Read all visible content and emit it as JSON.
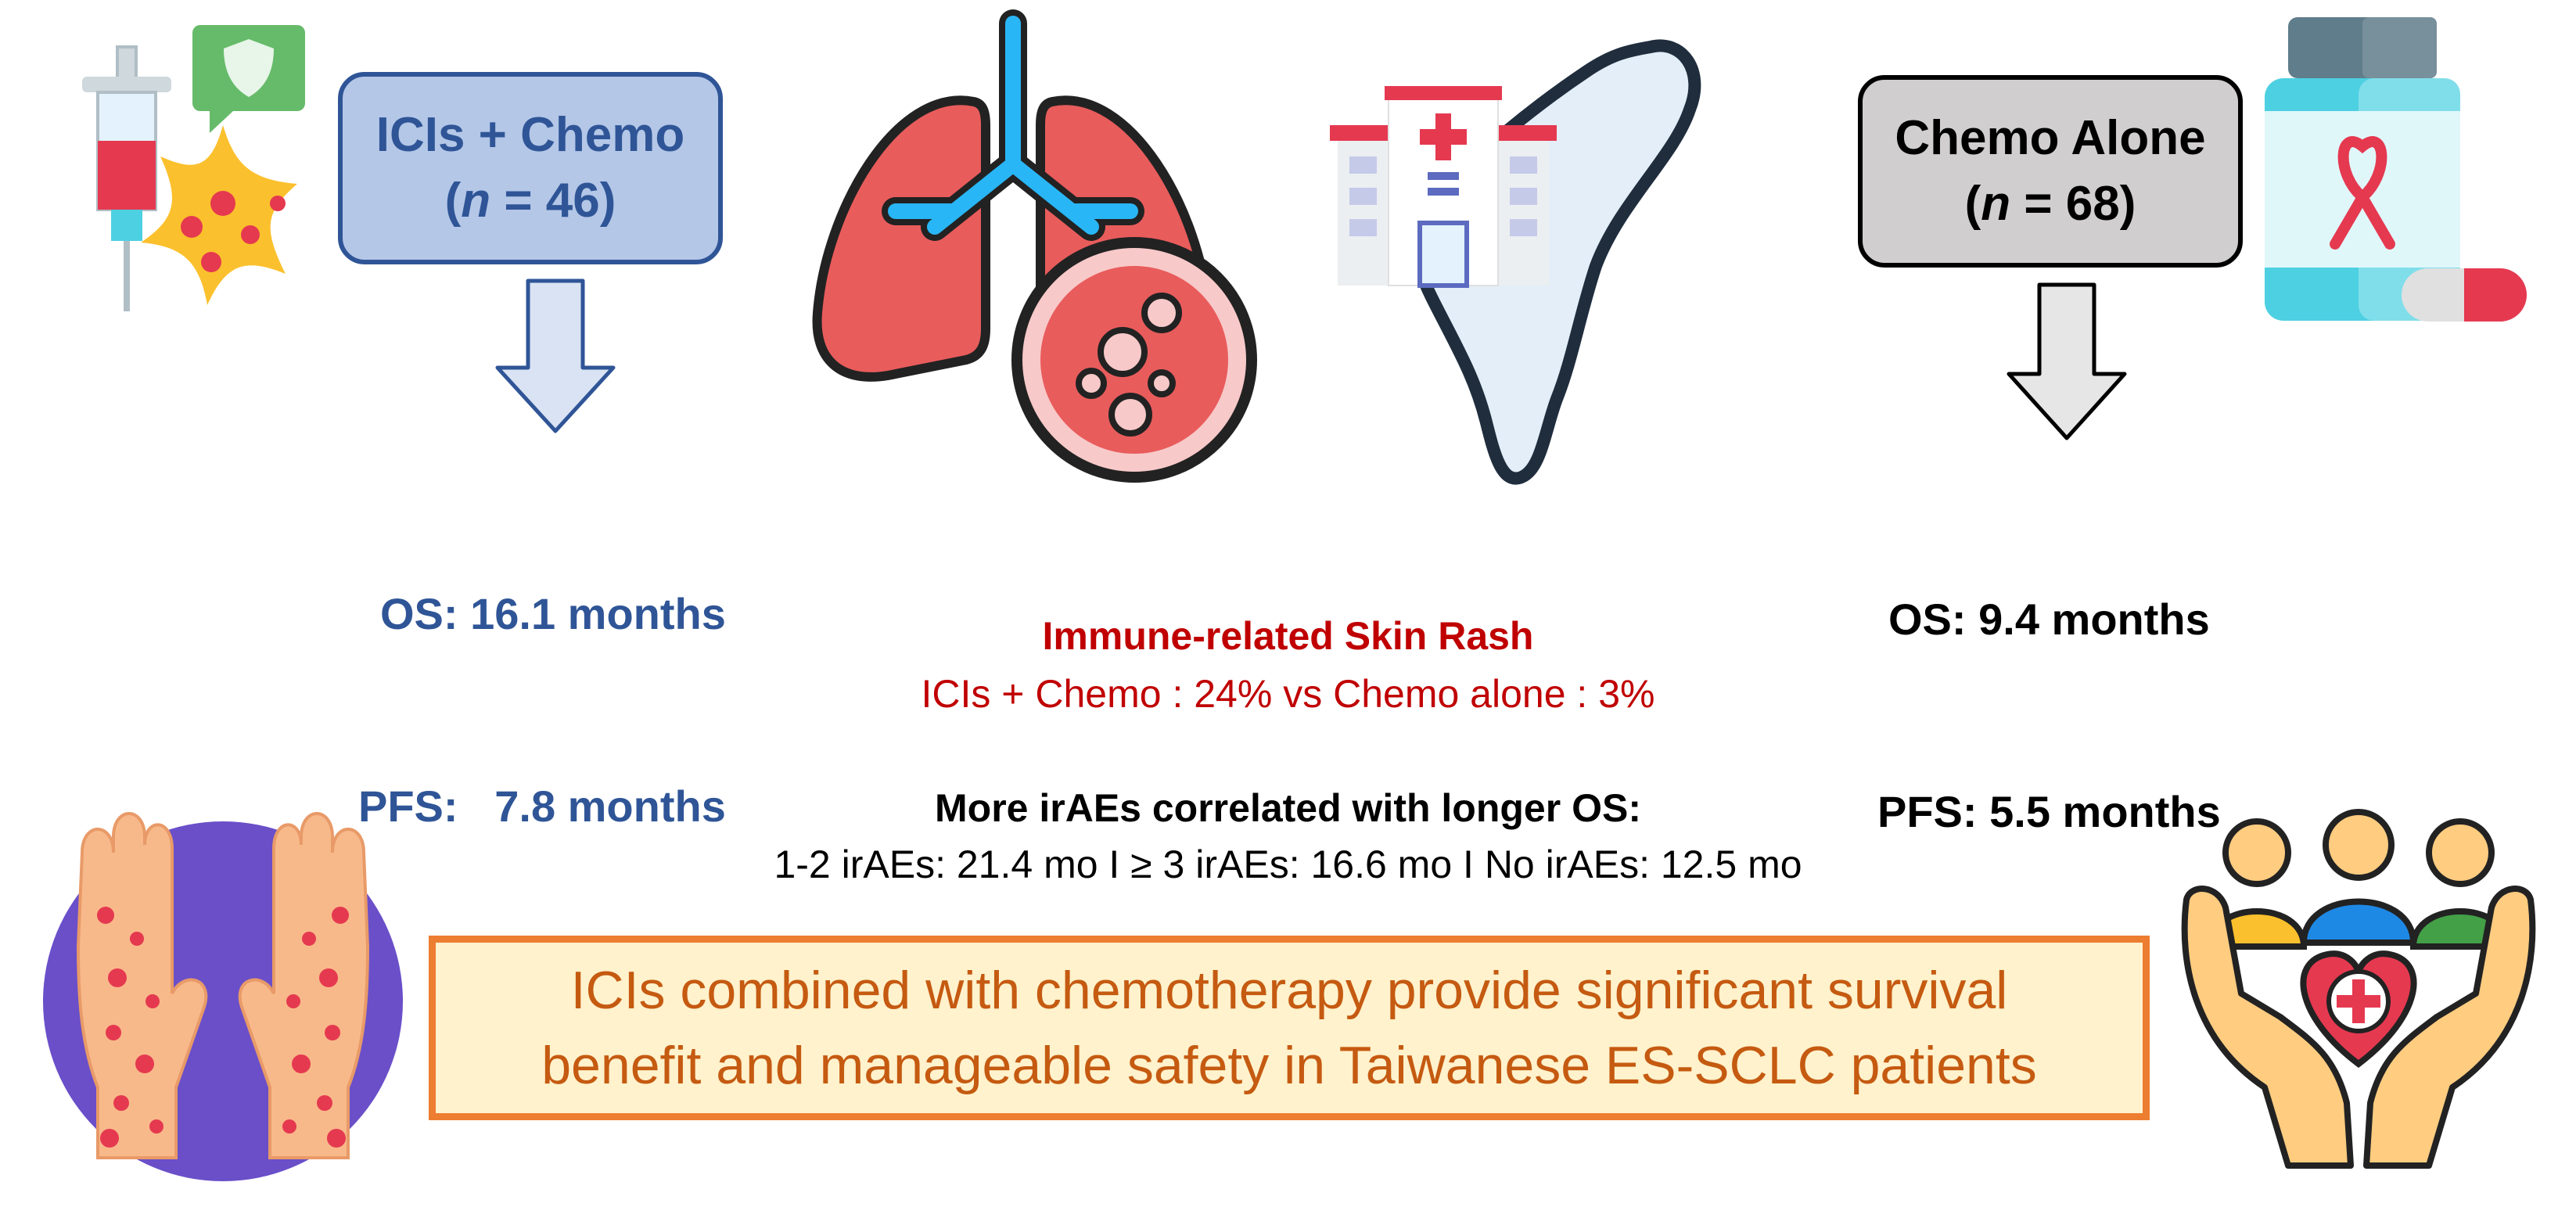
{
  "arms": {
    "ici": {
      "name": "ICIs + Chemo",
      "n_prefix": "(",
      "n_var": "n",
      "n_suffix": " = 46)",
      "os": "OS: 16.1 months",
      "pfs": "PFS:   7.8 months",
      "color": "#2f5597",
      "fill": "#b4c7e7"
    },
    "chemo": {
      "name": "Chemo Alone",
      "n_prefix": "(",
      "n_var": "n",
      "n_suffix": " = 68)",
      "os": "OS: 9.4 months",
      "pfs": "PFS: 5.5 months",
      "color": "#000000",
      "fill": "#d0cece"
    }
  },
  "skin_rash": {
    "title": "Immune-related Skin Rash",
    "comparison": "ICIs + Chemo : 24% vs Chemo alone : 3%",
    "color": "#c00000"
  },
  "irae": {
    "title": "More irAEs correlated with longer OS:",
    "stats": "1-2 irAEs: 21.4 mo I ≥ 3 irAEs: 16.6 mo I No irAEs: 12.5 mo"
  },
  "conclusion": {
    "line1": "ICIs combined with  chemotherapy provide significant survival",
    "line2": "benefit and manageable safety in Taiwanese ES-SCLC patients",
    "border": "#ed7d31",
    "fill": "#fff2cc",
    "text_color": "#c55a11"
  },
  "icons": [
    "syringe-icon",
    "virus-icon",
    "shield-chat-icon",
    "lungs-icon",
    "hospital-icon",
    "taiwan-map-icon",
    "medicine-bottle-icon",
    "pill-icon",
    "rash-hands-icon",
    "caring-hands-icon"
  ]
}
